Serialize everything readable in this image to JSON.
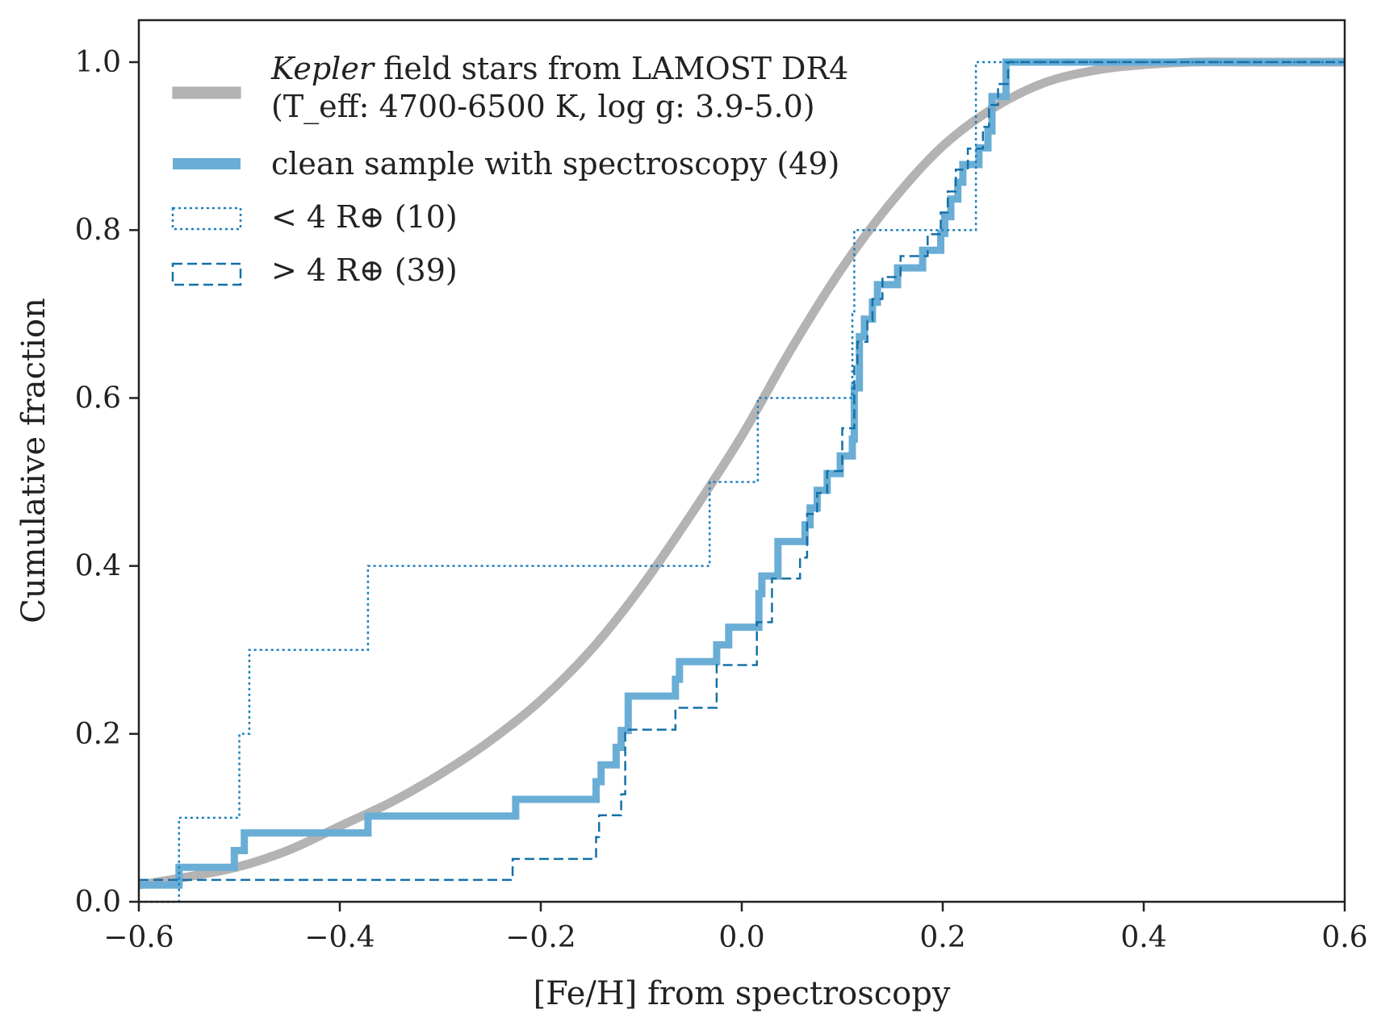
{
  "chart_data": {
    "type": "line",
    "title": "",
    "xlabel": "[Fe/H] from spectroscopy",
    "ylabel": "Cumulative fraction",
    "xlim": [
      -0.6,
      0.6
    ],
    "ylim": [
      0.0,
      1.05
    ],
    "xticks": [
      -0.6,
      -0.4,
      -0.2,
      0.0,
      0.2,
      0.4,
      0.6
    ],
    "xtick_labels": [
      "−0.6",
      "−0.4",
      "−0.2",
      "0.0",
      "0.2",
      "0.4",
      "0.6"
    ],
    "yticks": [
      0.0,
      0.2,
      0.4,
      0.6,
      0.8,
      1.0
    ],
    "ytick_labels": [
      "0.0",
      "0.2",
      "0.4",
      "0.6",
      "0.8",
      "1.0"
    ],
    "grid": false,
    "legend_position": "top-left",
    "series": [
      {
        "name": "Kepler field stars from LAMOST DR4",
        "legend_line1_italic": "Kepler",
        "legend_line1_rest": " field stars from LAMOST DR4",
        "legend_line2": "(T_eff: 4700-6500 K, log g: 3.9-5.0)",
        "style": "smooth",
        "color": "#b3b3b3",
        "x": [
          -0.6,
          -0.55,
          -0.5,
          -0.45,
          -0.4,
          -0.35,
          -0.3,
          -0.25,
          -0.2,
          -0.15,
          -0.1,
          -0.05,
          0.0,
          0.05,
          0.1,
          0.15,
          0.2,
          0.25,
          0.3,
          0.35,
          0.4,
          0.45,
          0.5,
          0.55,
          0.6
        ],
        "y": [
          0.02,
          0.03,
          0.042,
          0.062,
          0.09,
          0.118,
          0.152,
          0.192,
          0.24,
          0.3,
          0.375,
          0.462,
          0.555,
          0.66,
          0.755,
          0.835,
          0.9,
          0.945,
          0.975,
          0.99,
          0.997,
          1.0,
          1.0,
          1.0,
          1.0
        ]
      },
      {
        "name": "clean sample with spectroscopy (49)",
        "style": "step",
        "color": "#6aaed6",
        "x": [
          -0.6,
          -0.56,
          -0.505,
          -0.495,
          -0.372,
          -0.225,
          -0.145,
          -0.14,
          -0.125,
          -0.12,
          -0.113,
          -0.066,
          -0.062,
          -0.025,
          -0.013,
          0.017,
          0.02,
          0.036,
          0.063,
          0.068,
          0.075,
          0.085,
          0.098,
          0.11,
          0.112,
          0.117,
          0.122,
          0.13,
          0.135,
          0.155,
          0.18,
          0.198,
          0.202,
          0.208,
          0.215,
          0.22,
          0.236,
          0.245,
          0.249,
          0.263
        ],
        "y": [
          0.02,
          0.041,
          0.061,
          0.082,
          0.102,
          0.122,
          0.143,
          0.163,
          0.184,
          0.204,
          0.245,
          0.265,
          0.286,
          0.306,
          0.327,
          0.367,
          0.388,
          0.429,
          0.449,
          0.469,
          0.49,
          0.51,
          0.531,
          0.551,
          0.612,
          0.673,
          0.694,
          0.714,
          0.735,
          0.755,
          0.776,
          0.796,
          0.816,
          0.837,
          0.857,
          0.878,
          0.898,
          0.918,
          0.959,
          1.0
        ]
      },
      {
        "name": "< 4 R⊕ (10)",
        "style": "step",
        "color": "#1a80bb",
        "x": [
          -0.6,
          -0.56,
          -0.5,
          -0.49,
          -0.372,
          -0.032,
          0.016,
          0.11,
          0.112,
          0.233
        ],
        "y": [
          0.0,
          0.1,
          0.2,
          0.3,
          0.4,
          0.5,
          0.6,
          0.7,
          0.8,
          1.0
        ]
      },
      {
        "name": "> 4 R⊕ (39)",
        "style": "step",
        "color": "#1470a8",
        "x": [
          -0.6,
          -0.228,
          -0.145,
          -0.142,
          -0.12,
          -0.116,
          -0.066,
          -0.025,
          0.015,
          0.03,
          0.058,
          0.065,
          0.075,
          0.085,
          0.1,
          0.112,
          0.115,
          0.125,
          0.13,
          0.14,
          0.158,
          0.185,
          0.198,
          0.205,
          0.213,
          0.225,
          0.24,
          0.246,
          0.255,
          0.265
        ],
        "y": [
          0.026,
          0.051,
          0.077,
          0.103,
          0.128,
          0.205,
          0.231,
          0.282,
          0.333,
          0.385,
          0.41,
          0.462,
          0.487,
          0.513,
          0.564,
          0.641,
          0.667,
          0.692,
          0.718,
          0.744,
          0.769,
          0.795,
          0.821,
          0.846,
          0.872,
          0.897,
          0.923,
          0.949,
          0.974,
          1.0
        ]
      }
    ]
  },
  "legend": {
    "kepler_italic": "Kepler",
    "kepler_rest": " field stars from LAMOST DR4",
    "kepler_sub": "(T_eff: 4700-6500 K, log g: 3.9-5.0)",
    "clean": "clean sample with spectroscopy (49)",
    "small": "< 4 R⊕ (10)",
    "large": "> 4 R⊕ (39)"
  }
}
